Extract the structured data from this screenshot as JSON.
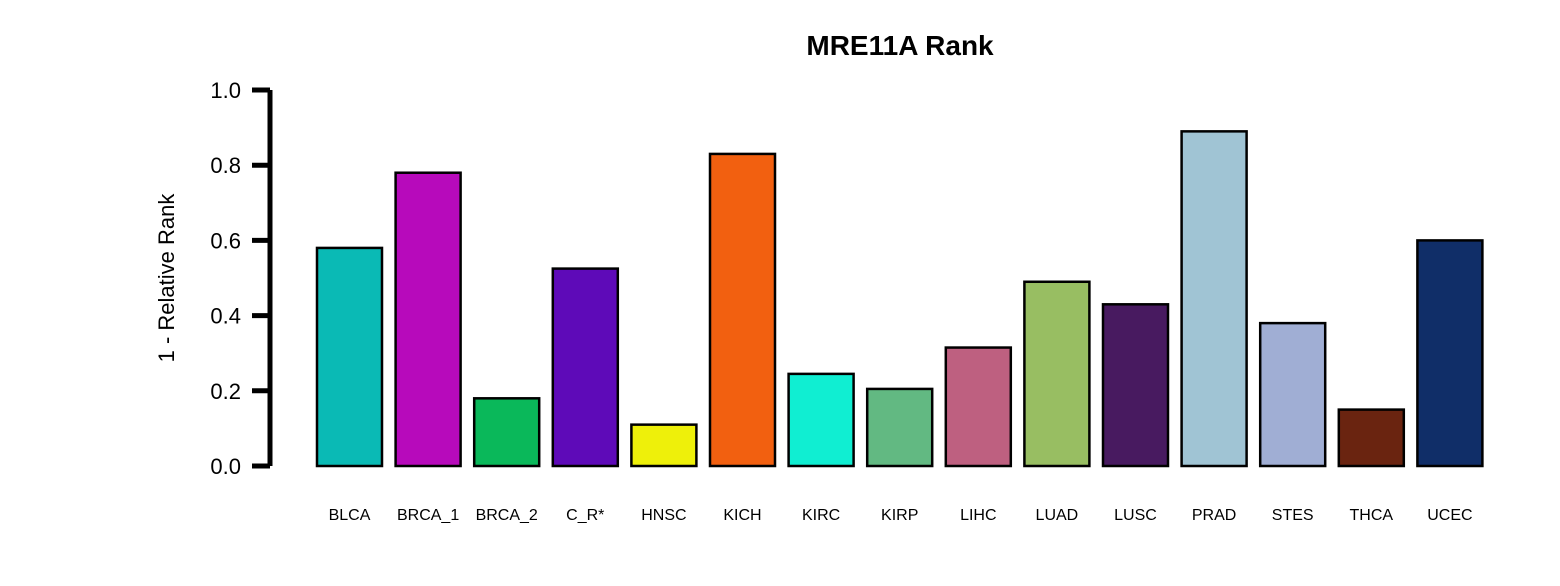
{
  "chart_data": {
    "type": "bar",
    "title": "MRE11A Rank",
    "xlabel": "",
    "ylabel": "1 - Relative Rank",
    "ylim": [
      0,
      1
    ],
    "yticks": [
      "0.0",
      "0.2",
      "0.4",
      "0.6",
      "0.8",
      "1.0"
    ],
    "grid": false,
    "categories": [
      "BLCA",
      "BRCA_1",
      "BRCA_2",
      "C_R*",
      "HNSC",
      "KICH",
      "KIRC",
      "KIRP",
      "LIHC",
      "LUAD",
      "LUSC",
      "PRAD",
      "STES",
      "THCA",
      "UCEC"
    ],
    "values": [
      0.58,
      0.78,
      0.18,
      0.525,
      0.11,
      0.83,
      0.245,
      0.205,
      0.315,
      0.49,
      0.43,
      0.89,
      0.38,
      0.15,
      0.6
    ],
    "colors": [
      "#0ABAB5",
      "#B70ABB",
      "#0AB85A",
      "#5E0AB8",
      "#EEF00A",
      "#F26010",
      "#10EED2",
      "#62B982",
      "#BE6080",
      "#98BE62",
      "#481A60",
      "#A0C4D4",
      "#A0AED4",
      "#6A2410",
      "#102E68"
    ]
  }
}
